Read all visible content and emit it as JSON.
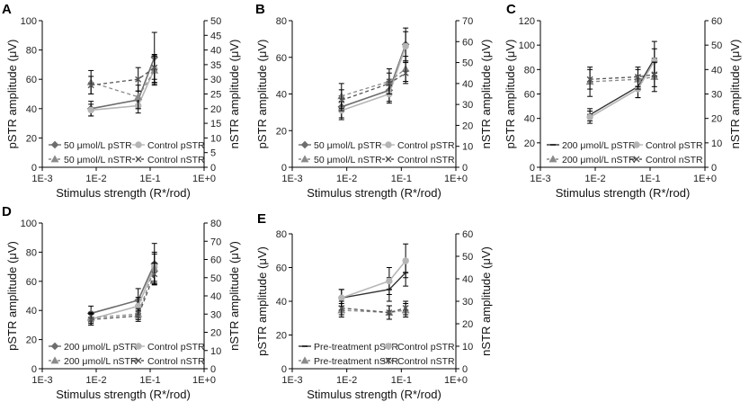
{
  "colors": {
    "treat_pstr": "#6d6d6d",
    "ctrl_pstr": "#b5b5b5",
    "treat_nstr": "#8a8a8a",
    "ctrl_nstr": "#555555",
    "pre_pstr": "#333333",
    "axis": "#000000",
    "errbar": "#000000"
  },
  "chart_data": [
    {
      "type": "line",
      "panel_label": "A",
      "xlabel": "Stimulus strength (R*/rod)",
      "ylabel": "pSTR amplitude (μV)",
      "ylabel2": "nSTR amplitude (μV)",
      "xscale": "log",
      "xlim": [
        0.001,
        1
      ],
      "xticks": [
        "1E-3",
        "1E-2",
        "1E-1",
        "1E+0"
      ],
      "ylim": [
        0,
        100
      ],
      "yticks": [
        "0",
        "20",
        "40",
        "60",
        "80",
        "100"
      ],
      "ylim2": [
        0,
        50
      ],
      "yticks2": [
        "0",
        "5",
        "10",
        "15",
        "20",
        "25",
        "30",
        "35",
        "40",
        "45",
        "50"
      ],
      "x": [
        0.008,
        0.06,
        0.12
      ],
      "legend": [
        "50 μmol/L pSTR",
        "Control pSTR",
        "50 μmol/L nSTR",
        "Control nSTR"
      ],
      "series": [
        {
          "name": "50 μmol/L pSTR",
          "axis": "left",
          "style": "treat_p",
          "values": [
            40,
            46,
            75
          ],
          "err": [
            5,
            6,
            17
          ]
        },
        {
          "name": "Control pSTR",
          "axis": "left",
          "style": "ctrl_p",
          "values": [
            39,
            42,
            67
          ],
          "err": [
            4,
            5,
            10
          ]
        },
        {
          "name": "50 μmol/L nSTR",
          "axis": "right",
          "style": "treat_n",
          "values": [
            29,
            24,
            33
          ],
          "err": [
            4,
            4,
            5
          ]
        },
        {
          "name": "Control nSTR",
          "axis": "right",
          "style": "ctrl_n",
          "values": [
            28,
            30,
            34
          ],
          "err": [
            3,
            4,
            4
          ]
        }
      ]
    },
    {
      "type": "line",
      "panel_label": "B",
      "xlabel": "Stimulus strength (R*/rod)",
      "ylabel": "pSTR amplitude (μV)",
      "ylabel2": "nSTR amplitude (μV)",
      "xscale": "log",
      "xlim": [
        0.001,
        1
      ],
      "xticks": [
        "1E-3",
        "1E-2",
        "1E-1",
        "1E+0"
      ],
      "ylim": [
        0,
        80
      ],
      "yticks": [
        "0",
        "20",
        "40",
        "60",
        "80"
      ],
      "ylim2": [
        0,
        70
      ],
      "yticks2": [
        "0",
        "10",
        "20",
        "30",
        "40",
        "50",
        "60",
        "70"
      ],
      "x": [
        0.008,
        0.06,
        0.12
      ],
      "legend": [
        "50 μmol/L pSTR",
        "Control pSTR",
        "50 μmol/L nSTR",
        "Control nSTR"
      ],
      "series": [
        {
          "name": "50 μmol/L pSTR",
          "axis": "left",
          "style": "treat_p",
          "values": [
            33,
            42,
            67
          ],
          "err": [
            6,
            6,
            9
          ]
        },
        {
          "name": "Control pSTR",
          "axis": "left",
          "style": "ctrl_p",
          "values": [
            31,
            40,
            66
          ],
          "err": [
            5,
            5,
            8
          ]
        },
        {
          "name": "50 μmol/L nSTR",
          "axis": "right",
          "style": "treat_n",
          "values": [
            34,
            41,
            47
          ],
          "err": [
            6,
            6,
            6
          ]
        },
        {
          "name": "Control nSTR",
          "axis": "right",
          "style": "ctrl_n",
          "values": [
            32,
            40,
            45
          ],
          "err": [
            5,
            5,
            5
          ]
        }
      ]
    },
    {
      "type": "line",
      "panel_label": "C",
      "xlabel": "Stimulus strength (R*/rod)",
      "ylabel": "pSTR amplitude (μV)",
      "ylabel2": "nSTR amplitude (μV)",
      "xscale": "log",
      "xlim": [
        0.001,
        1
      ],
      "xticks": [
        "1E-3",
        "1E-2",
        "1E-1",
        "1E+0"
      ],
      "ylim": [
        0,
        120
      ],
      "yticks": [
        "0",
        "20",
        "40",
        "60",
        "80",
        "100",
        "120"
      ],
      "ylim2": [
        0,
        60
      ],
      "yticks2": [
        "0",
        "10",
        "20",
        "30",
        "40",
        "50",
        "60"
      ],
      "x": [
        0.008,
        0.06,
        0.12
      ],
      "legend": [
        "200 μmol/L pSTR",
        "Control pSTR",
        "200 μmol/L nSTR",
        "Control nSTR"
      ],
      "series": [
        {
          "name": "200 μmol/L pSTR",
          "axis": "left",
          "style": "pre_p",
          "values": [
            43,
            66,
            89
          ],
          "err": [
            5,
            9,
            14
          ]
        },
        {
          "name": "Control pSTR",
          "axis": "left",
          "style": "ctrl_p",
          "values": [
            41,
            64,
            87
          ],
          "err": [
            5,
            7,
            10
          ]
        },
        {
          "name": "200 μmol/L nSTR",
          "axis": "right",
          "style": "treat_n",
          "values": [
            35,
            36,
            37
          ],
          "err": [
            6,
            4,
            6
          ]
        },
        {
          "name": "Control nSTR",
          "axis": "right",
          "style": "ctrl_n",
          "values": [
            36,
            37,
            38
          ],
          "err": [
            4,
            4,
            5
          ]
        }
      ]
    },
    {
      "type": "line",
      "panel_label": "D",
      "xlabel": "Stimulus strength (R*/rod)",
      "ylabel": "pSTR amplitude (μV)",
      "ylabel2": "nSTR amplitude (μV)",
      "xscale": "log",
      "xlim": [
        0.001,
        1
      ],
      "xticks": [
        "1E-3",
        "1E-2",
        "1E-1",
        "1E+0"
      ],
      "ylim": [
        0,
        100
      ],
      "yticks": [
        "0",
        "20",
        "40",
        "60",
        "80",
        "100"
      ],
      "ylim2": [
        0,
        80
      ],
      "yticks2": [
        "0",
        "10",
        "20",
        "30",
        "40",
        "50",
        "60",
        "70",
        "80"
      ],
      "x": [
        0.008,
        0.06,
        0.12
      ],
      "legend": [
        "200 μmol/L pSTR",
        "Control pSTR",
        "200 μmol/L nSTR",
        "Control nSTR"
      ],
      "series": [
        {
          "name": "200 μmol/L pSTR",
          "axis": "left",
          "style": "treat_p",
          "values": [
            38,
            47,
            72
          ],
          "err": [
            5,
            8,
            14
          ]
        },
        {
          "name": "Control pSTR",
          "axis": "left",
          "style": "ctrl_p",
          "values": [
            34,
            43,
            70
          ],
          "err": [
            4,
            6,
            10
          ]
        },
        {
          "name": "200 μmol/L nSTR",
          "axis": "right",
          "style": "treat_n",
          "values": [
            28,
            30,
            55
          ],
          "err": [
            3,
            3,
            8
          ]
        },
        {
          "name": "Control nSTR",
          "axis": "right",
          "style": "ctrl_n",
          "values": [
            27,
            29,
            52
          ],
          "err": [
            3,
            3,
            6
          ]
        }
      ]
    },
    {
      "type": "line",
      "panel_label": "E",
      "xlabel": "Stimulus strength (R*/rod)",
      "ylabel": "pSTR amplitude (μV)",
      "ylabel2": "nSTR amplitude (μV)",
      "xscale": "log",
      "xlim": [
        0.001,
        1
      ],
      "xticks": [
        "1E-3",
        "1E-2",
        "1E-1",
        "1E+0"
      ],
      "ylim": [
        0,
        80
      ],
      "yticks": [
        "0",
        "20",
        "40",
        "60",
        "80"
      ],
      "ylim2": [
        0,
        60
      ],
      "yticks2": [
        "0",
        "10",
        "20",
        "30",
        "40",
        "50",
        "60"
      ],
      "x": [
        0.008,
        0.06,
        0.12
      ],
      "legend": [
        "Pre-treatment pSTR",
        "Control pSTR",
        "Pre-treatment nSTR",
        "Control nSTR"
      ],
      "series": [
        {
          "name": "Pre-treatment pSTR",
          "axis": "left",
          "style": "pre_p",
          "values": [
            42,
            47,
            57
          ],
          "err": [
            5,
            7,
            8
          ]
        },
        {
          "name": "Control pSTR",
          "axis": "left",
          "style": "ctrl_p",
          "values": [
            42,
            52,
            64
          ],
          "err": [
            5,
            8,
            10
          ]
        },
        {
          "name": "Pre-treatment nSTR",
          "axis": "right",
          "style": "treat_n",
          "values": [
            26,
            25,
            26
          ],
          "err": [
            3,
            3,
            3
          ]
        },
        {
          "name": "Control nSTR",
          "axis": "right",
          "style": "ctrl_n",
          "values": [
            27,
            25,
            27
          ],
          "err": [
            3,
            3,
            3
          ]
        }
      ]
    }
  ]
}
